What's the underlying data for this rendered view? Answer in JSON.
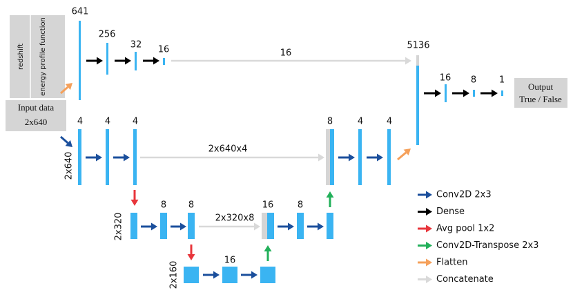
{
  "input": {
    "rows": [
      "redshift",
      "energy profile function"
    ],
    "label": "Input data",
    "shape": "2x640"
  },
  "dense_branch": {
    "sizes": [
      641,
      256,
      32,
      16
    ],
    "concat_label": 16
  },
  "merge": {
    "sizes": [
      5136,
      16,
      8,
      1
    ]
  },
  "output": {
    "label": "Output",
    "classes": "True / False"
  },
  "level1": {
    "shape": "2x640",
    "filters": [
      4,
      4,
      4
    ],
    "concat_label": "2x640x4",
    "up_filters": [
      8,
      4,
      4
    ]
  },
  "level2": {
    "shape": "2x320",
    "filters": [
      8,
      8
    ],
    "concat_label": "2x320x8",
    "up_filters": [
      16,
      8
    ]
  },
  "level3": {
    "shape": "2x160",
    "filters": [
      16
    ]
  },
  "legend": [
    {
      "label": "Conv2D 2x3",
      "color": "#1b4f9c"
    },
    {
      "label": "Dense",
      "color": "#000000"
    },
    {
      "label": "Avg pool 1x2",
      "color": "#e8353b"
    },
    {
      "label": "Conv2D-Transpose 2x3",
      "color": "#22b05a"
    },
    {
      "label": "Flatten",
      "color": "#f5a05a"
    },
    {
      "label": "Concatenate",
      "color": "#d9d9d9"
    }
  ]
}
